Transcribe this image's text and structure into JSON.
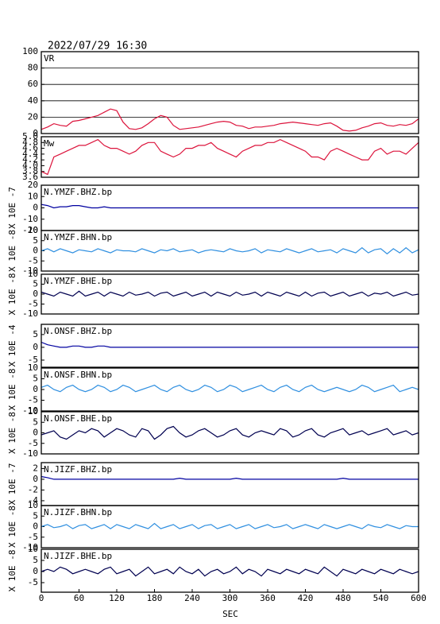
{
  "chart_data": {
    "type": "line",
    "title": "2022/07/29 16:30",
    "xlabel": "SEC",
    "xlim": [
      0,
      600
    ],
    "xticks": [
      0,
      60,
      120,
      180,
      240,
      300,
      360,
      420,
      480,
      540,
      600
    ],
    "x": [
      0,
      10,
      20,
      30,
      40,
      50,
      60,
      70,
      80,
      90,
      100,
      110,
      120,
      130,
      140,
      150,
      160,
      170,
      180,
      190,
      200,
      210,
      220,
      230,
      240,
      250,
      260,
      270,
      280,
      290,
      300,
      310,
      320,
      330,
      340,
      350,
      360,
      370,
      380,
      390,
      400,
      410,
      420,
      430,
      440,
      450,
      460,
      470,
      480,
      490,
      500,
      510,
      520,
      530,
      540,
      550,
      560,
      570,
      580,
      590,
      600
    ],
    "series": [
      {
        "name": "VR",
        "color": "#dc143c",
        "grid": true,
        "ylim": [
          0,
          100
        ],
        "yticks": [
          0,
          20,
          40,
          60,
          80,
          100
        ],
        "values": [
          5,
          8,
          12,
          10,
          9,
          15,
          16,
          18,
          20,
          22,
          26,
          30,
          28,
          14,
          6,
          5,
          7,
          12,
          18,
          22,
          20,
          10,
          5,
          6,
          7,
          8,
          10,
          12,
          14,
          15,
          14,
          10,
          9,
          6,
          8,
          8,
          9,
          10,
          12,
          13,
          14,
          13,
          12,
          11,
          10,
          12,
          13,
          9,
          4,
          3,
          4,
          7,
          9,
          12,
          13,
          10,
          9,
          11,
          10,
          12,
          18
        ]
      },
      {
        "name": "Mw",
        "color": "#dc143c",
        "ylim": [
          3.6,
          5.0
        ],
        "yticks": [
          {
            "value": 3.6,
            "label": "3.6"
          },
          {
            "value": 3.8,
            "label": "3.8"
          },
          {
            "value": 4.0,
            "label": "4.0"
          },
          {
            "value": 4.2,
            "label": "4.2"
          },
          {
            "value": 4.4,
            "label": "4.4"
          },
          {
            "value": 4.6,
            "label": "4.6"
          },
          {
            "value": 4.8,
            "label": "4.8"
          },
          {
            "value": 5.0,
            "label": "5.0"
          }
        ],
        "values": [
          3.8,
          3.7,
          4.3,
          4.4,
          4.5,
          4.6,
          4.7,
          4.7,
          4.8,
          4.9,
          4.7,
          4.6,
          4.6,
          4.5,
          4.4,
          4.5,
          4.7,
          4.8,
          4.8,
          4.5,
          4.4,
          4.3,
          4.4,
          4.6,
          4.6,
          4.7,
          4.7,
          4.8,
          4.6,
          4.5,
          4.4,
          4.3,
          4.5,
          4.6,
          4.7,
          4.7,
          4.8,
          4.8,
          4.9,
          4.8,
          4.7,
          4.6,
          4.5,
          4.3,
          4.3,
          4.2,
          4.5,
          4.6,
          4.5,
          4.4,
          4.3,
          4.2,
          4.2,
          4.5,
          4.6,
          4.4,
          4.5,
          4.5,
          4.4,
          4.6,
          4.8
        ]
      },
      {
        "name": "N.YMZF.BHZ.bp",
        "ylabel": "X 10E -7",
        "color": "#0000a0",
        "ylim": [
          -20,
          20
        ],
        "yticks": [
          20,
          10,
          0,
          -10,
          -20
        ],
        "values": [
          3,
          2,
          0,
          1,
          1,
          2,
          2,
          1,
          0,
          0,
          1,
          0,
          0,
          0,
          0,
          0,
          0,
          0,
          0,
          0,
          0,
          0,
          0,
          0,
          0,
          0,
          0,
          0,
          0,
          0,
          0,
          0,
          0,
          0,
          0,
          0,
          0,
          0,
          0,
          0,
          0,
          0,
          0,
          0,
          0,
          0,
          0,
          0,
          0,
          0,
          0,
          0,
          0,
          0,
          0,
          0,
          0,
          0,
          0,
          0,
          0
        ]
      },
      {
        "name": "N.YMZF.BHN.bp",
        "ylabel": "X 10E -8",
        "color": "#2f8fe0",
        "ylim": [
          -10,
          10
        ],
        "yticks": [
          10,
          5,
          0,
          -5,
          -10
        ],
        "values": [
          0,
          1,
          -0.5,
          1,
          0,
          -1,
          0.5,
          0,
          -0.5,
          1,
          0,
          -1,
          0.5,
          0,
          0,
          -0.5,
          1,
          0,
          -1,
          0.5,
          0,
          1,
          -0.5,
          0,
          0.5,
          -1,
          0,
          0.5,
          0,
          -0.5,
          1,
          0,
          -0.5,
          0,
          1,
          -1,
          0.5,
          0,
          -0.5,
          1,
          0,
          -1,
          0,
          1,
          -0.5,
          0,
          0.5,
          -1,
          1,
          0,
          -1,
          1.5,
          -1,
          0.5,
          1,
          -1.5,
          1,
          -1,
          1.5,
          -1,
          0.5
        ]
      },
      {
        "name": "N.YMZF.BHE.bp",
        "ylabel": "X 10E -8",
        "color": "#000050",
        "ylim": [
          -10,
          10
        ],
        "yticks": [
          10,
          5,
          0,
          -5,
          -10
        ],
        "values": [
          1,
          0,
          -1,
          1,
          0,
          -1,
          1.5,
          -1,
          0,
          1,
          -1,
          1,
          0,
          -1,
          1,
          -0.5,
          0,
          1,
          -1,
          0.5,
          1,
          -1,
          0,
          1,
          -1,
          0,
          1,
          -1,
          1,
          0,
          -1,
          1,
          -0.5,
          0,
          1,
          -1,
          1,
          0,
          -1,
          1,
          0,
          -1,
          1,
          -1,
          0.5,
          1,
          -1,
          0,
          1,
          -1,
          0,
          1,
          -1,
          0.5,
          0,
          1,
          -1,
          0,
          1,
          -0.5,
          0
        ]
      },
      {
        "name": "N.ONSF.BHZ.bp",
        "ylabel": "X 10E -4",
        "color": "#0000a0",
        "ylim": [
          -7.8,
          9
        ],
        "yticks": [
          5,
          0,
          -5
        ],
        "values": [
          2,
          1,
          0.5,
          0,
          0,
          0.5,
          0.5,
          0,
          0,
          0.5,
          0.5,
          0,
          0,
          0,
          0,
          0,
          0,
          0,
          0,
          0,
          0,
          0,
          0,
          0,
          0,
          0,
          0,
          0,
          0,
          0,
          0,
          0,
          0,
          0,
          0,
          0,
          0,
          0,
          0,
          0,
          0,
          0,
          0,
          0,
          0,
          0,
          0,
          0,
          0,
          0,
          0,
          0,
          0,
          0,
          0,
          0,
          0,
          0,
          0,
          0,
          0
        ]
      },
      {
        "name": "N.ONSF.BHN.bp",
        "ylabel": "X 10E -8",
        "color": "#2f8fe0",
        "ylim": [
          -10,
          10
        ],
        "yticks": [
          10,
          5,
          0,
          -5,
          -10
        ],
        "values": [
          1,
          2,
          0,
          -1,
          1,
          2,
          0,
          -1,
          0,
          2,
          1,
          -1,
          0,
          2,
          1,
          -1,
          0,
          1,
          2,
          0,
          -1,
          1,
          2,
          0,
          -1,
          0,
          2,
          1,
          -1,
          0,
          2,
          1,
          -1,
          0,
          1,
          2,
          0,
          -1,
          1,
          2,
          0,
          -1,
          1,
          2,
          0,
          -1,
          0,
          1,
          0,
          -1,
          0,
          2,
          1,
          -1,
          0,
          1,
          2,
          -1,
          0,
          1,
          0
        ]
      },
      {
        "name": "N.ONSF.BHE.bp",
        "ylabel": "X 10E -8",
        "color": "#000050",
        "ylim": [
          -10,
          10
        ],
        "yticks": [
          10,
          5,
          0,
          -5,
          -10
        ],
        "values": [
          -1,
          0,
          1,
          -2,
          -3,
          -1,
          1,
          0,
          2,
          1,
          -2,
          0,
          2,
          1,
          -1,
          -2,
          2,
          1,
          -3,
          -1,
          2,
          3,
          0,
          -2,
          -1,
          1,
          2,
          0,
          -2,
          -1,
          1,
          2,
          -1,
          -2,
          0,
          1,
          0,
          -1,
          2,
          1,
          -2,
          -1,
          1,
          2,
          -1,
          -2,
          0,
          1,
          2,
          -1,
          0,
          1,
          -1,
          0,
          1,
          2,
          -1,
          0,
          1,
          -1,
          0
        ]
      },
      {
        "name": "N.JIZF.BHZ.bp",
        "ylabel": "X 10E -7",
        "color": "#0000a0",
        "ylim": [
          -4.9,
          3.1
        ],
        "yticks": [
          2,
          0,
          -2,
          -4
        ],
        "values": [
          0.5,
          0.3,
          0,
          0,
          0,
          0,
          0,
          0,
          0,
          0,
          0,
          0,
          0,
          0,
          0,
          0,
          0,
          0,
          0,
          0,
          0,
          0,
          0.2,
          0,
          0,
          0,
          0,
          0,
          0,
          0,
          0,
          0.2,
          0,
          0,
          0,
          0,
          0,
          0,
          0,
          0,
          0,
          0,
          0,
          0,
          0,
          0,
          0,
          0,
          0.2,
          0,
          0,
          0,
          0,
          0,
          0,
          0,
          0,
          0,
          0,
          0,
          0
        ]
      },
      {
        "name": "N.JIZF.BHN.bp",
        "ylabel": "X 10E -8",
        "color": "#2f8fe0",
        "ylim": [
          -10,
          10
        ],
        "yticks": [
          10,
          5,
          0,
          -5,
          -10
        ],
        "values": [
          0,
          1,
          -0.5,
          0,
          1,
          -1,
          0.5,
          1,
          -1,
          0,
          1,
          -1,
          1,
          0,
          -1,
          1,
          0,
          -1,
          1.5,
          -1,
          0,
          1,
          -1,
          0,
          1,
          -1,
          0.5,
          1,
          -1,
          0,
          1,
          -1,
          0,
          1,
          -1,
          0,
          1,
          -0.5,
          0,
          1,
          -1,
          0,
          1,
          0,
          -1,
          1,
          0,
          -1,
          0,
          1,
          0,
          -1,
          1,
          0,
          -0.5,
          1,
          0,
          -1,
          0.5,
          0,
          0
        ]
      },
      {
        "name": "N.JIZF.BHE.bp",
        "ylabel": "X 10E -8",
        "color": "#000050",
        "ylim": [
          -9.3,
          10
        ],
        "yticks": [
          10,
          5,
          0,
          -5
        ],
        "values": [
          0,
          1,
          0,
          2,
          1,
          -1,
          0,
          1,
          0,
          -1,
          1,
          2,
          -1,
          0,
          1,
          -2,
          0,
          2,
          -1,
          0,
          1,
          -1,
          2,
          0,
          -1,
          1,
          -2,
          0,
          1,
          -1,
          0,
          2,
          -1,
          1,
          0,
          -2,
          1,
          0,
          -1,
          1,
          0,
          -1,
          1,
          0,
          -1,
          2,
          0,
          -2,
          1,
          0,
          -1,
          1,
          0,
          -1,
          1,
          0,
          -1,
          1,
          0,
          -1,
          0
        ]
      }
    ]
  }
}
